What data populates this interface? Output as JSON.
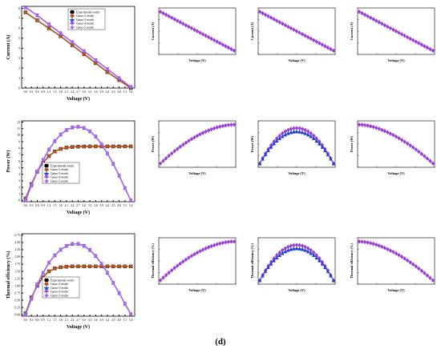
{
  "caption": "(d)",
  "colors": {
    "experimental": "#000000",
    "gauss2": "#b5541f",
    "gauss3": "#1f3fd1",
    "gauss4": "#9b3fd6",
    "gauss5": "#a56bea",
    "zoom": "#6a3fc6"
  },
  "legend_entries": [
    "Experimental results",
    "Gauss-2 results",
    "Gauss-3 results",
    "Gauss-4 results",
    "Gauss-5 results"
  ],
  "chart_data": [
    {
      "id": "current-main",
      "type": "line",
      "xlabel": "Voltage (V)",
      "ylabel": "Current (A)",
      "xlim": [
        -0.2,
        5.6
      ],
      "ylim": [
        0,
        8.2
      ],
      "xticks": [
        "0.0",
        "0.3",
        "0.6",
        "0.9",
        "1.2",
        "1.5",
        "1.8",
        "2.1",
        "2.4",
        "2.7",
        "3.0",
        "3.3",
        "3.6",
        "3.9",
        "4.2",
        "4.5",
        "4.8",
        "5.1",
        "5.4"
      ],
      "xtick_values": [
        0,
        0.3,
        0.6,
        0.9,
        1.2,
        1.5,
        1.8,
        2.1,
        2.4,
        2.7,
        3.0,
        3.3,
        3.6,
        3.9,
        4.2,
        4.5,
        4.8,
        5.1,
        5.4
      ],
      "yticks": [
        "0",
        "1",
        "2",
        "3",
        "4",
        "5",
        "6",
        "7",
        "8"
      ],
      "ytick_values": [
        0,
        1,
        2,
        3,
        4,
        5,
        6,
        7,
        8
      ],
      "legend": "top-center",
      "series": [
        {
          "name": "Experimental results",
          "x": [
            0,
            0.6,
            1.2,
            1.8,
            2.4,
            3.0,
            3.6,
            4.2,
            4.8,
            5.4
          ],
          "y": [
            7.6,
            6.8,
            6.0,
            5.2,
            4.3,
            3.4,
            2.5,
            1.6,
            0.8,
            0.0
          ]
        },
        {
          "name": "Gauss-2 results",
          "x": [
            0,
            0.6,
            1.2,
            1.8,
            2.4,
            3.0,
            3.6,
            4.2,
            4.8,
            5.4
          ],
          "y": [
            7.6,
            6.8,
            6.0,
            5.2,
            4.3,
            3.4,
            2.5,
            1.6,
            0.8,
            0.0
          ]
        },
        {
          "name": "Gauss-3 results",
          "x": [
            0,
            0.6,
            1.2,
            1.8,
            2.4,
            3.0,
            3.6,
            4.2,
            4.8,
            5.4
          ],
          "y": [
            8.1,
            7.3,
            6.4,
            5.5,
            4.6,
            3.7,
            2.8,
            1.9,
            1.0,
            0.1
          ]
        },
        {
          "name": "Gauss-4 results",
          "x": [
            0,
            0.6,
            1.2,
            1.8,
            2.4,
            3.0,
            3.6,
            4.2,
            4.8,
            5.4
          ],
          "y": [
            8.1,
            7.3,
            6.4,
            5.5,
            4.6,
            3.7,
            2.8,
            1.9,
            1.0,
            0.1
          ]
        },
        {
          "name": "Gauss-5 results",
          "x": [
            0,
            0.6,
            1.2,
            1.8,
            2.4,
            3.0,
            3.6,
            4.2,
            4.8,
            5.4
          ],
          "y": [
            8.1,
            7.3,
            6.4,
            5.5,
            4.6,
            3.7,
            2.8,
            1.9,
            1.0,
            0.1
          ]
        }
      ]
    },
    {
      "id": "power-main",
      "type": "line",
      "xlabel": "Voltage (V)",
      "ylabel": "Power (W)",
      "xlim": [
        -0.2,
        5.6
      ],
      "ylim": [
        -0.2,
        12.2
      ],
      "xticks": [
        "0.0",
        "0.3",
        "0.6",
        "0.9",
        "1.2",
        "1.5",
        "1.8",
        "2.1",
        "2.4",
        "2.7",
        "3.0",
        "3.3",
        "3.6",
        "3.9",
        "4.2",
        "4.5",
        "4.8",
        "5.1",
        "5.4"
      ],
      "xtick_values": [
        0,
        0.3,
        0.6,
        0.9,
        1.2,
        1.5,
        1.8,
        2.1,
        2.4,
        2.7,
        3.0,
        3.3,
        3.6,
        3.9,
        4.2,
        4.5,
        4.8,
        5.1,
        5.4
      ],
      "yticks": [
        "0",
        "1",
        "2",
        "3",
        "4",
        "5",
        "6",
        "7",
        "8",
        "9",
        "10",
        "11",
        "12"
      ],
      "ytick_values": [
        0,
        1,
        2,
        3,
        4,
        5,
        6,
        7,
        8,
        9,
        10,
        11,
        12
      ],
      "legend": "bottom-center",
      "series": [
        {
          "name": "Experimental results",
          "x": [
            0,
            0.3,
            0.6,
            0.9,
            1.2,
            1.5,
            1.8,
            2.1,
            2.4,
            2.7,
            3.0,
            3.3,
            3.6,
            3.9,
            4.2,
            4.5,
            4.8,
            5.1,
            5.4
          ],
          "y": [
            0.3,
            2.5,
            4.4,
            5.8,
            6.8,
            7.5,
            7.9,
            8.1,
            8.2,
            8.25,
            8.27,
            8.28,
            8.28,
            8.28,
            8.28,
            8.28,
            8.28,
            8.28,
            8.28
          ]
        },
        {
          "name": "Gauss-2 results",
          "x": [
            0,
            0.3,
            0.6,
            0.9,
            1.2,
            1.5,
            1.8,
            2.1,
            2.4,
            2.7,
            3.0,
            3.3,
            3.6,
            3.9,
            4.2,
            4.5,
            4.8,
            5.1,
            5.4
          ],
          "y": [
            0.3,
            2.5,
            4.4,
            5.8,
            6.8,
            7.5,
            7.9,
            8.1,
            8.2,
            8.25,
            8.27,
            8.28,
            8.28,
            8.28,
            8.28,
            8.28,
            8.28,
            8.28,
            8.28
          ]
        },
        {
          "name": "Gauss-3 results",
          "x": [
            0,
            0.3,
            0.6,
            0.9,
            1.2,
            1.5,
            1.8,
            2.1,
            2.4,
            2.7,
            3.0,
            3.3,
            3.6,
            3.9,
            4.2,
            4.5,
            4.8,
            5.1,
            5.4
          ],
          "y": [
            0.0,
            2.3,
            4.4,
            6.2,
            7.8,
            9.1,
            10.1,
            10.8,
            11.2,
            11.3,
            11.1,
            10.6,
            9.8,
            8.6,
            7.2,
            5.6,
            3.8,
            1.9,
            0.0
          ]
        },
        {
          "name": "Gauss-4 results",
          "x": [
            0,
            0.3,
            0.6,
            0.9,
            1.2,
            1.5,
            1.8,
            2.1,
            2.4,
            2.7,
            3.0,
            3.3,
            3.6,
            3.9,
            4.2,
            4.5,
            4.8,
            5.1,
            5.4
          ],
          "y": [
            0.0,
            2.3,
            4.4,
            6.2,
            7.8,
            9.1,
            10.1,
            10.8,
            11.2,
            11.3,
            11.1,
            10.6,
            9.8,
            8.6,
            7.2,
            5.6,
            3.8,
            1.9,
            0.0
          ]
        },
        {
          "name": "Gauss-5 results",
          "x": [
            0,
            0.3,
            0.6,
            0.9,
            1.2,
            1.5,
            1.8,
            2.1,
            2.4,
            2.7,
            3.0,
            3.3,
            3.6,
            3.9,
            4.2,
            4.5,
            4.8,
            5.1,
            5.4
          ],
          "y": [
            0.0,
            2.3,
            4.4,
            6.2,
            7.8,
            9.1,
            10.1,
            10.8,
            11.2,
            11.3,
            11.1,
            10.6,
            9.8,
            8.6,
            7.2,
            5.6,
            3.8,
            1.9,
            0.0
          ]
        }
      ]
    },
    {
      "id": "efficiency-main",
      "type": "line",
      "xlabel": "Voltage (V)",
      "ylabel": "Thermal efficiency (%)",
      "xlim": [
        -0.2,
        5.6
      ],
      "ylim": [
        -0.05,
        2.8
      ],
      "xticks": [
        "0.0",
        "0.3",
        "0.6",
        "0.9",
        "1.2",
        "1.5",
        "1.8",
        "2.1",
        "2.4",
        "2.7",
        "3.0",
        "3.3",
        "3.6",
        "3.9",
        "4.2",
        "4.5",
        "4.8",
        "5.1",
        "5.4"
      ],
      "xtick_values": [
        0,
        0.3,
        0.6,
        0.9,
        1.2,
        1.5,
        1.8,
        2.1,
        2.4,
        2.7,
        3.0,
        3.3,
        3.6,
        3.9,
        4.2,
        4.5,
        4.8,
        5.1,
        5.4
      ],
      "yticks": [
        "0.00",
        "0.25",
        "0.50",
        "0.75",
        "1.00",
        "1.25",
        "1.50",
        "1.75",
        "2.00",
        "2.25",
        "2.50",
        "2.75"
      ],
      "ytick_values": [
        0,
        0.25,
        0.5,
        0.75,
        1.0,
        1.25,
        1.5,
        1.75,
        2.0,
        2.25,
        2.5,
        2.75
      ],
      "legend": "bottom-center",
      "series": [
        {
          "name": "Experimental results",
          "x": [
            0,
            0.3,
            0.6,
            0.9,
            1.2,
            1.5,
            1.8,
            2.1,
            2.4,
            2.7,
            3.0,
            3.3,
            3.6,
            3.9,
            4.2,
            4.5,
            4.8,
            5.1,
            5.4
          ],
          "y": [
            0.05,
            0.6,
            1.0,
            1.3,
            1.5,
            1.6,
            1.64,
            1.66,
            1.67,
            1.67,
            1.67,
            1.67,
            1.67,
            1.67,
            1.67,
            1.67,
            1.67,
            1.67,
            1.67
          ]
        },
        {
          "name": "Gauss-2 results",
          "x": [
            0,
            0.3,
            0.6,
            0.9,
            1.2,
            1.5,
            1.8,
            2.1,
            2.4,
            2.7,
            3.0,
            3.3,
            3.6,
            3.9,
            4.2,
            4.5,
            4.8,
            5.1,
            5.4
          ],
          "y": [
            0.05,
            0.6,
            1.0,
            1.3,
            1.5,
            1.6,
            1.64,
            1.66,
            1.67,
            1.67,
            1.67,
            1.67,
            1.67,
            1.67,
            1.67,
            1.67,
            1.67,
            1.67,
            1.67
          ]
        },
        {
          "name": "Gauss-3 results",
          "x": [
            0,
            0.3,
            0.6,
            0.9,
            1.2,
            1.5,
            1.8,
            2.1,
            2.4,
            2.7,
            3.0,
            3.3,
            3.6,
            3.9,
            4.2,
            4.5,
            4.8,
            5.1,
            5.4
          ],
          "y": [
            0.0,
            0.55,
            1.05,
            1.45,
            1.8,
            2.05,
            2.25,
            2.38,
            2.45,
            2.45,
            2.38,
            2.24,
            2.03,
            1.76,
            1.45,
            1.1,
            0.75,
            0.38,
            0.02
          ]
        },
        {
          "name": "Gauss-4 results",
          "x": [
            0,
            0.3,
            0.6,
            0.9,
            1.2,
            1.5,
            1.8,
            2.1,
            2.4,
            2.7,
            3.0,
            3.3,
            3.6,
            3.9,
            4.2,
            4.5,
            4.8,
            5.1,
            5.4
          ],
          "y": [
            0.0,
            0.55,
            1.05,
            1.45,
            1.8,
            2.05,
            2.25,
            2.38,
            2.45,
            2.45,
            2.38,
            2.24,
            2.03,
            1.76,
            1.45,
            1.1,
            0.75,
            0.38,
            0.02
          ]
        },
        {
          "name": "Gauss-5 results",
          "x": [
            0,
            0.3,
            0.6,
            0.9,
            1.2,
            1.5,
            1.8,
            2.1,
            2.4,
            2.7,
            3.0,
            3.3,
            3.6,
            3.9,
            4.2,
            4.5,
            4.8,
            5.1,
            5.4
          ],
          "y": [
            0.0,
            0.55,
            1.05,
            1.45,
            1.8,
            2.05,
            2.25,
            2.38,
            2.45,
            2.45,
            2.38,
            2.24,
            2.03,
            1.76,
            1.45,
            1.1,
            0.75,
            0.38,
            0.02
          ]
        }
      ]
    }
  ],
  "zoom_panels": [
    {
      "row": 0,
      "col": 0,
      "xlabel": "Voltage (V)",
      "ylabel": "Current (A)",
      "shape": "linear-down",
      "double": false
    },
    {
      "row": 0,
      "col": 1,
      "xlabel": "Voltage (V)",
      "ylabel": "Current (A)",
      "shape": "linear-down",
      "double": false
    },
    {
      "row": 0,
      "col": 2,
      "xlabel": "Voltage (V)",
      "ylabel": "Current (A)",
      "shape": "linear-down",
      "double": false
    },
    {
      "row": 1,
      "col": 0,
      "xlabel": "Voltage (V)",
      "ylabel": "Power (W)",
      "shape": "concave-up",
      "double": false
    },
    {
      "row": 1,
      "col": 1,
      "xlabel": "Voltage (V)",
      "ylabel": "Power (W)",
      "shape": "arch",
      "double": true
    },
    {
      "row": 1,
      "col": 2,
      "xlabel": "Voltage (V)",
      "ylabel": "Power (W)",
      "shape": "concave-down",
      "double": false
    },
    {
      "row": 2,
      "col": 0,
      "xlabel": "Voltage (V)",
      "ylabel": "Thermal efficiency (%)",
      "shape": "concave-up",
      "double": false
    },
    {
      "row": 2,
      "col": 1,
      "xlabel": "Voltage (V)",
      "ylabel": "Thermal efficiency (%)",
      "shape": "arch",
      "double": true
    },
    {
      "row": 2,
      "col": 2,
      "xlabel": "Voltage (V)",
      "ylabel": "Thermal efficiency (%)",
      "shape": "concave-down",
      "double": false
    }
  ]
}
